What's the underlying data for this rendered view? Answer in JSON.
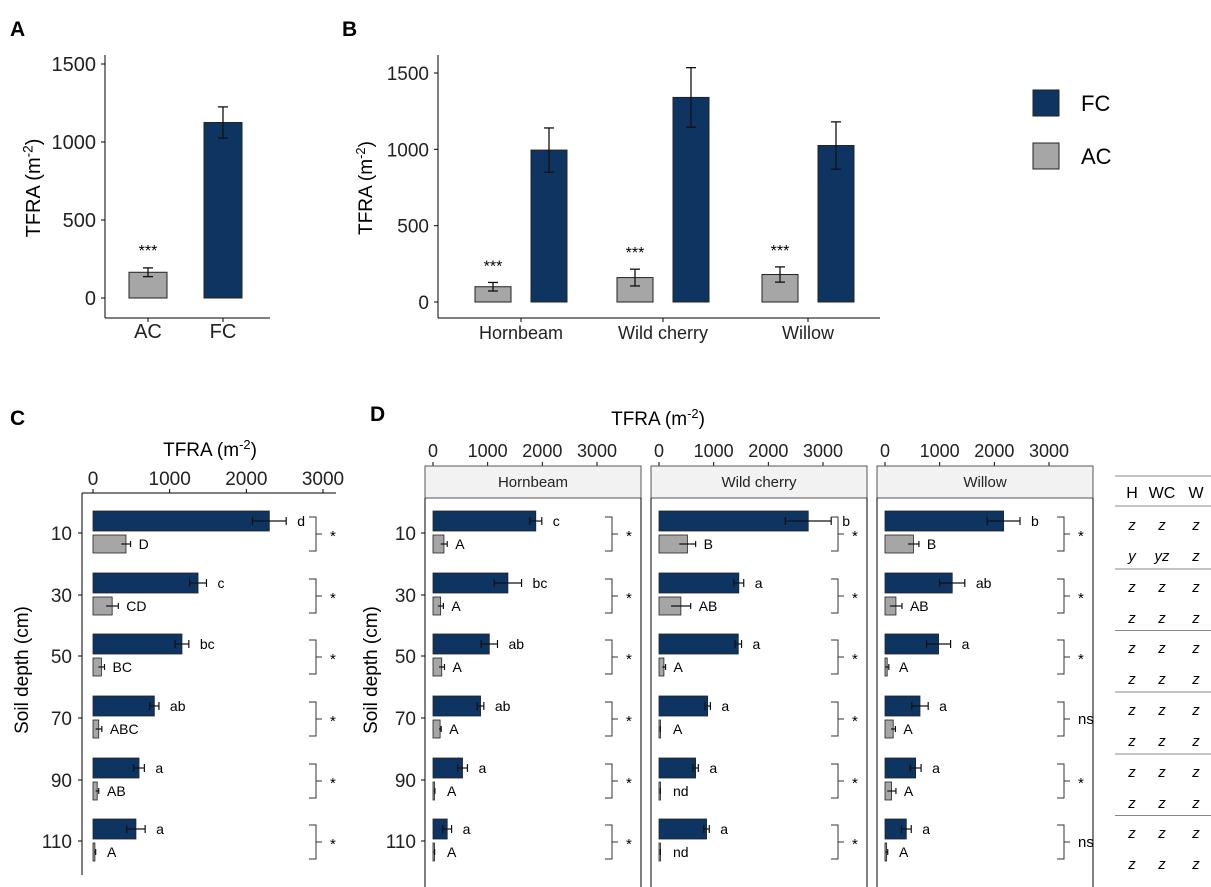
{
  "colors": {
    "FC": "#0e3562",
    "AC": "#a6a6a6",
    "axis": "#000000",
    "strip_fill": "#f2f2f2",
    "strip_stroke": "#555555",
    "table_line": "#888888"
  },
  "legend": [
    {
      "key": "FC",
      "label": "FC"
    },
    {
      "key": "AC",
      "label": "AC"
    }
  ],
  "chart_data": [
    {
      "panel": "A",
      "type": "bar",
      "ylabel": "TFRA (m",
      "ylabel_sup": "-2",
      "ylabel_tail": ")",
      "ylim": [
        0,
        1600
      ],
      "yticks": [
        0,
        500,
        1000,
        1500
      ],
      "categories": [
        "AC",
        "FC"
      ],
      "bars": [
        {
          "category": "AC",
          "group": "AC",
          "value": 165,
          "err": 28,
          "label": "***"
        },
        {
          "category": "FC",
          "group": "FC",
          "value": 1125,
          "err": 100,
          "label": ""
        }
      ]
    },
    {
      "panel": "B",
      "type": "bar",
      "ylabel": "TFRA (m",
      "ylabel_sup": "-2",
      "ylabel_tail": ")",
      "ylim": [
        0,
        1600
      ],
      "yticks": [
        0,
        500,
        1000,
        1500
      ],
      "categories": [
        "Hornbeam",
        "Wild cherry",
        "Willow"
      ],
      "series": [
        {
          "name": "AC",
          "values": [
            100,
            160,
            180
          ],
          "errors": [
            28,
            55,
            50
          ],
          "labels": [
            "***",
            "***",
            "***"
          ]
        },
        {
          "name": "FC",
          "values": [
            995,
            1340,
            1025
          ],
          "errors": [
            145,
            195,
            155
          ],
          "labels": [
            "",
            "",
            ""
          ]
        }
      ]
    },
    {
      "panel": "C",
      "type": "bar",
      "orientation": "horizontal",
      "xlabel": "TFRA (m",
      "xlabel_sup": "-2",
      "xlabel_tail": ")",
      "ylabel": "Soil depth (cm)",
      "xlim": [
        0,
        3100
      ],
      "xticks": [
        0,
        1000,
        2000,
        3000
      ],
      "depths": [
        "10",
        "30",
        "50",
        "70",
        "90",
        "110"
      ],
      "FC": {
        "values": [
          2300,
          1370,
          1160,
          800,
          600,
          560
        ],
        "errors": [
          220,
          110,
          90,
          60,
          70,
          120
        ],
        "letters": [
          "d",
          "c",
          "bc",
          "ab",
          "a",
          "a"
        ]
      },
      "AC": {
        "values": [
          430,
          250,
          110,
          75,
          55,
          25
        ],
        "errors": [
          60,
          80,
          40,
          40,
          20,
          10
        ],
        "letters": [
          "D",
          "CD",
          "BC",
          "ABC",
          "AB",
          "A"
        ]
      },
      "sig": [
        "*",
        "*",
        "*",
        "*",
        "*",
        "*"
      ]
    },
    {
      "panel": "D",
      "type": "bar",
      "orientation": "horizontal",
      "xlabel": "TFRA (m",
      "xlabel_sup": "-2",
      "xlabel_tail": ")",
      "ylabel": "Soil depth (cm)",
      "xlim": [
        0,
        3700
      ],
      "xticks": [
        0,
        1000,
        2000,
        3000
      ],
      "depths": [
        "10",
        "30",
        "50",
        "70",
        "90",
        "110"
      ],
      "facets": [
        {
          "name": "Hornbeam",
          "FC": {
            "values": [
              1880,
              1370,
              1030,
              870,
              540,
              260
            ],
            "errors": [
              110,
              250,
              150,
              60,
              90,
              80
            ],
            "letters": [
              "c",
              "bc",
              "ab",
              "ab",
              "a",
              "a"
            ]
          },
          "AC": {
            "values": [
              200,
              140,
              160,
              130,
              25,
              20
            ],
            "errors": [
              60,
              50,
              50,
              20,
              10,
              10
            ],
            "letters": [
              "A",
              "A",
              "A",
              "A",
              "A",
              "A"
            ]
          },
          "sig": [
            "*",
            "*",
            "*",
            "*",
            "*",
            "*"
          ]
        },
        {
          "name": "Wild cherry",
          "FC": {
            "values": [
              2730,
              1460,
              1450,
              890,
              670,
              870
            ],
            "errors": [
              420,
              90,
              60,
              50,
              50,
              50
            ],
            "letters": [
              "b",
              "a",
              "a",
              "a",
              "a",
              "a"
            ]
          },
          "AC": {
            "values": [
              520,
              400,
              90,
              20,
              20,
              20
            ],
            "errors": [
              150,
              180,
              30,
              5,
              5,
              5
            ],
            "letters": [
              "B",
              "AB",
              "A",
              "A",
              "nd",
              "nd"
            ]
          },
          "sig": [
            "*",
            "*",
            "*",
            "*",
            "*",
            "*"
          ]
        },
        {
          "name": "Willow",
          "FC": {
            "values": [
              2170,
              1230,
              980,
              640,
              560,
              390
            ],
            "errors": [
              300,
              230,
              220,
              150,
              100,
              90
            ],
            "letters": [
              "b",
              "ab",
              "a",
              "a",
              "a",
              "a"
            ]
          },
          "AC": {
            "values": [
              520,
              200,
              40,
              150,
              120,
              30
            ],
            "errors": [
              100,
              110,
              30,
              40,
              80,
              20
            ],
            "letters": [
              "B",
              "AB",
              "A",
              "A",
              "A",
              "A"
            ]
          },
          "sig": [
            "*",
            "*",
            "*",
            "ns",
            "*",
            "ns"
          ]
        }
      ]
    }
  ],
  "table": {
    "headers": [
      "H",
      "WC",
      "W"
    ],
    "rows": [
      [
        "z",
        "z",
        "z"
      ],
      [
        "y",
        "yz",
        "z"
      ],
      [
        "z",
        "z",
        "z"
      ],
      [
        "z",
        "z",
        "z"
      ],
      [
        "z",
        "z",
        "z"
      ],
      [
        "z",
        "z",
        "z"
      ],
      [
        "z",
        "z",
        "z"
      ],
      [
        "z",
        "z",
        "z"
      ],
      [
        "z",
        "z",
        "z"
      ],
      [
        "z",
        "z",
        "z"
      ],
      [
        "z",
        "z",
        "z"
      ],
      [
        "z",
        "z",
        "z"
      ]
    ]
  }
}
